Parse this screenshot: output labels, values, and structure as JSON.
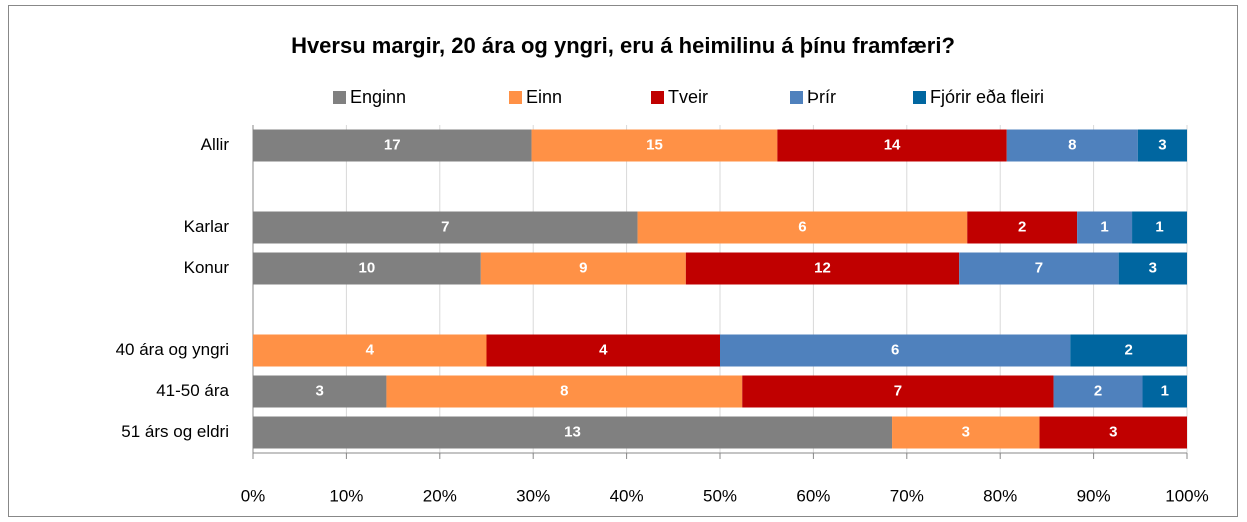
{
  "chart_data": {
    "type": "bar",
    "orientation": "horizontal",
    "stacked": "percent",
    "title": "Hversu margir, 20 ára og yngri, eru á heimilinu á þínu framfæri?",
    "categories": [
      "Allir",
      null,
      "Karlar",
      "Konur",
      null,
      "40 ára og yngri",
      "41-50 ára",
      "51 árs og eldri"
    ],
    "series": [
      {
        "name": "Enginn",
        "color": "#808080",
        "values": [
          17,
          null,
          7,
          10,
          null,
          null,
          3,
          13
        ]
      },
      {
        "name": "Einn",
        "color": "#ff9146",
        "values": [
          15,
          null,
          6,
          9,
          null,
          4,
          8,
          3
        ]
      },
      {
        "name": "Tveir",
        "color": "#c00000",
        "values": [
          14,
          null,
          2,
          12,
          null,
          4,
          7,
          3
        ]
      },
      {
        "name": "Þrír",
        "color": "#4f81bd",
        "values": [
          8,
          null,
          1,
          7,
          null,
          6,
          2,
          null
        ]
      },
      {
        "name": "Fjórir eða fleiri",
        "color": "#0066a0",
        "values": [
          3,
          null,
          1,
          3,
          null,
          2,
          1,
          null
        ]
      }
    ],
    "xlim": [
      0,
      100
    ],
    "xticks": [
      {
        "value": 0,
        "label": "0%"
      },
      {
        "value": 10,
        "label": "10%"
      },
      {
        "value": 20,
        "label": "20%"
      },
      {
        "value": 30,
        "label": "30%"
      },
      {
        "value": 40,
        "label": "40%"
      },
      {
        "value": 50,
        "label": "50%"
      },
      {
        "value": 60,
        "label": "60%"
      },
      {
        "value": 70,
        "label": "70%"
      },
      {
        "value": 80,
        "label": "80%"
      },
      {
        "value": 90,
        "label": "90%"
      },
      {
        "value": 100,
        "label": "100%"
      }
    ],
    "grid": true,
    "legend": "top"
  }
}
